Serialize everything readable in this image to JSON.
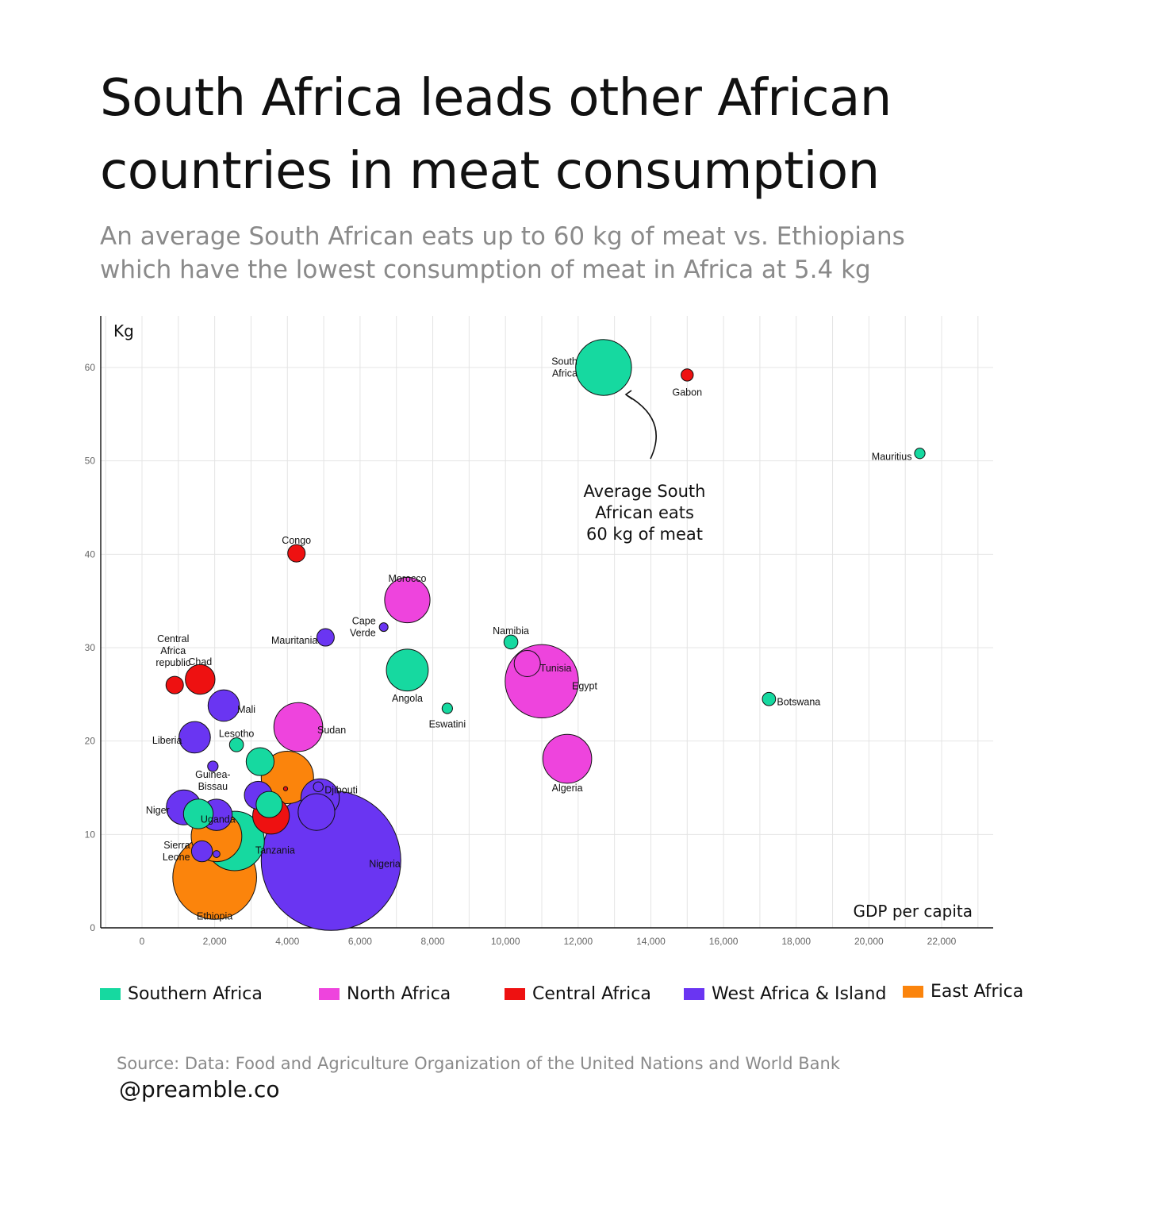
{
  "title_lines": [
    "South Africa leads other African",
    "countries in meat consumption"
  ],
  "subtitle_lines": [
    "An average South African eats up to 60 kg of meat vs. Ethiopians",
    "which have the lowest consumption of meat in Africa at 5.4 kg"
  ],
  "annotation_lines": [
    "Average South",
    "African eats",
    "60 kg of meat"
  ],
  "source": "Source: Data: Food and Agriculture Organization of the United Nations and World Bank",
  "handle": "@preamble.co",
  "colors": {
    "Southern Africa": "#16d9a0",
    "North Africa": "#ee44dd",
    "Central Africa": "#ee1111",
    "West Africa & Island": "#6a35f2",
    "East Africa": "#fb840c"
  },
  "chart_data": {
    "type": "scatter",
    "bubble": true,
    "xlabel": "GDP per capita",
    "ylabel": "Kg",
    "xlim": [
      -1100,
      23500
    ],
    "ylim": [
      0,
      65
    ],
    "x_ticks": [
      0,
      2000,
      4000,
      6000,
      8000,
      10000,
      12000,
      14000,
      16000,
      18000,
      20000,
      22000
    ],
    "x_tick_labels": [
      "0",
      "2,000",
      "4,000",
      "6,000",
      "8,000",
      "10,000",
      "12,000",
      "14,000",
      "16,000",
      "18,000",
      "20,000",
      "22,000"
    ],
    "y_ticks": [
      0,
      10,
      20,
      30,
      40,
      50,
      60
    ],
    "y_tick_labels": [
      "0",
      "10",
      "20",
      "30",
      "40",
      "50",
      "60"
    ],
    "grid": true,
    "legend_position": "bottom",
    "legend": [
      "Southern Africa",
      "North Africa",
      "Central Africa",
      "West Africa & Island",
      "East Africa"
    ],
    "points": [
      {
        "x": 12700,
        "y": 60,
        "size": 1.6,
        "group": "Southern Africa",
        "label": "South Africa"
      },
      {
        "x": 15000,
        "y": 59.2,
        "size": 0.35,
        "group": "Central Africa",
        "label": "Gabon"
      },
      {
        "x": 21400,
        "y": 50.8,
        "size": 0.3,
        "group": "Southern Africa",
        "label": "Mauritius"
      },
      {
        "x": 4250,
        "y": 40.1,
        "size": 0.5,
        "group": "Central Africa",
        "label": "Congo"
      },
      {
        "x": 7300,
        "y": 35.1,
        "size": 1.3,
        "group": "North Africa",
        "label": "Morocco"
      },
      {
        "x": 6650,
        "y": 32.2,
        "size": 0.25,
        "group": "West Africa & Island",
        "label": "Cape Verde"
      },
      {
        "x": 5050,
        "y": 31.1,
        "size": 0.5,
        "group": "West Africa & Island",
        "label": "Mauritania"
      },
      {
        "x": 10150,
        "y": 30.6,
        "size": 0.4,
        "group": "Southern Africa",
        "label": "Namibia"
      },
      {
        "x": 10600,
        "y": 28.3,
        "size": 0.75,
        "group": "North Africa",
        "label": "Tunisia"
      },
      {
        "x": 7300,
        "y": 27.6,
        "size": 1.2,
        "group": "Southern Africa",
        "label": "Angola"
      },
      {
        "x": 11000,
        "y": 26.4,
        "size": 2.1,
        "group": "North Africa",
        "label": "Egypt"
      },
      {
        "x": 900,
        "y": 26,
        "size": 0.5,
        "group": "Central Africa",
        "label": "Central Africa republic"
      },
      {
        "x": 1600,
        "y": 26.6,
        "size": 0.85,
        "group": "Central Africa",
        "label": "Chad"
      },
      {
        "x": 2250,
        "y": 23.8,
        "size": 0.9,
        "group": "West Africa & Island",
        "label": "Mali"
      },
      {
        "x": 17250,
        "y": 24.5,
        "size": 0.38,
        "group": "Southern Africa",
        "label": "Botswana"
      },
      {
        "x": 8400,
        "y": 23.5,
        "size": 0.3,
        "group": "Southern Africa",
        "label": "Eswatini"
      },
      {
        "x": 4300,
        "y": 21.5,
        "size": 1.4,
        "group": "North Africa",
        "label": "Sudan"
      },
      {
        "x": 1450,
        "y": 20.4,
        "size": 0.9,
        "group": "West Africa & Island",
        "label": "Liberia"
      },
      {
        "x": 2600,
        "y": 19.6,
        "size": 0.4,
        "group": "Southern Africa",
        "label": "Lesotho"
      },
      {
        "x": 11700,
        "y": 18.1,
        "size": 1.4,
        "group": "North Africa",
        "label": "Algeria"
      },
      {
        "x": 3250,
        "y": 17.8,
        "size": 0.8,
        "group": "Southern Africa",
        "label": ""
      },
      {
        "x": 1950,
        "y": 17.3,
        "size": 0.3,
        "group": "West Africa & Island",
        "label": "Guinea-Bissau"
      },
      {
        "x": 4000,
        "y": 16.1,
        "size": 1.5,
        "group": "East Africa",
        "label": ""
      },
      {
        "x": 3950,
        "y": 14.9,
        "size": 0.12,
        "group": "Central Africa",
        "label": ""
      },
      {
        "x": 4850,
        "y": 15.1,
        "size": 0.28,
        "group": "West Africa & Island",
        "label": "Djibouti"
      },
      {
        "x": 4900,
        "y": 13.9,
        "size": 1.1,
        "group": "West Africa & Island",
        "label": ""
      },
      {
        "x": 3200,
        "y": 14.2,
        "size": 0.8,
        "group": "West Africa & Island",
        "label": ""
      },
      {
        "x": 3500,
        "y": 13.2,
        "size": 0.75,
        "group": "Southern Africa",
        "label": ""
      },
      {
        "x": 4800,
        "y": 12.4,
        "size": 1.05,
        "group": "West Africa & Island",
        "label": ""
      },
      {
        "x": 3550,
        "y": 12,
        "size": 1.05,
        "group": "Central Africa",
        "label": ""
      },
      {
        "x": 1550,
        "y": 12.2,
        "size": 0.85,
        "group": "Southern Africa",
        "label": ""
      },
      {
        "x": 1150,
        "y": 12.9,
        "size": 1.0,
        "group": "West Africa & Island",
        "label": "Niger"
      },
      {
        "x": 2050,
        "y": 12.1,
        "size": 0.9,
        "group": "West Africa & Island",
        "label": "Uganda"
      },
      {
        "x": 2550,
        "y": 9.3,
        "size": 1.7,
        "group": "Southern Africa",
        "label": "Tanzania"
      },
      {
        "x": 2050,
        "y": 9.8,
        "size": 1.45,
        "group": "East Africa",
        "label": ""
      },
      {
        "x": 1650,
        "y": 8.2,
        "size": 0.6,
        "group": "West Africa & Island",
        "label": "Sierra Leone"
      },
      {
        "x": 2050,
        "y": 7.9,
        "size": 0.2,
        "group": "West Africa & Island",
        "label": ""
      },
      {
        "x": 5200,
        "y": 7.2,
        "size": 4.0,
        "group": "West Africa & Island",
        "label": "Nigeria"
      },
      {
        "x": 2000,
        "y": 5.4,
        "size": 2.4,
        "group": "East Africa",
        "label": "Ethiopia"
      }
    ]
  }
}
